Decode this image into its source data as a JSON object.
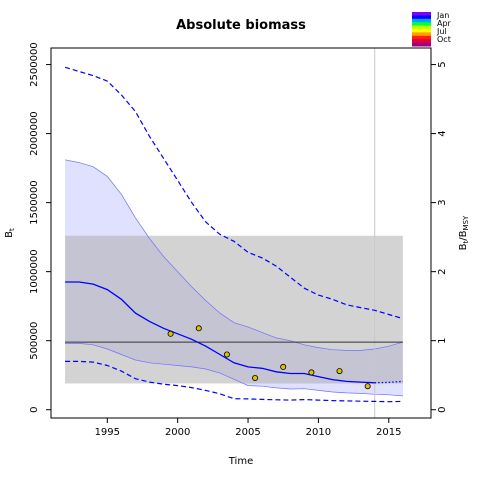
{
  "chart_data": {
    "type": "line",
    "title": "Absolute biomass",
    "xlabel": "Time",
    "ylabel": "B_t",
    "ylabel_right": "B_t/B_MSY",
    "xlim": [
      1991,
      2018
    ],
    "ylim": [
      -60000,
      2620000
    ],
    "ylim_right": [
      -0.12,
      5.24
    ],
    "x_ticks": [
      "1995",
      "2000",
      "2005",
      "2010",
      "2015"
    ],
    "y_ticks": [
      "0",
      "500000",
      "1000000",
      "1500000",
      "2000000",
      "2500000"
    ],
    "y_ticks_right": [
      "0",
      "1",
      "2",
      "3",
      "4",
      "5"
    ],
    "bmsy_band": {
      "x": [
        1992,
        2016
      ],
      "y": [
        190000,
        1260000
      ]
    },
    "bmsy_line": 490000,
    "current_year_line": 2014,
    "legend": {
      "labels": [
        "Jan",
        "Apr",
        "Jul",
        "Oct"
      ],
      "colors": [
        "#8000ff",
        "#0000ff",
        "#00a0ff",
        "#00ff40",
        "#c0ff00",
        "#ffff00",
        "#ffa000",
        "#ff2000",
        "#e00040",
        "#a00080"
      ]
    },
    "series": [
      {
        "role": "estimate",
        "color": "#0000ff",
        "x": [
          1992,
          1993,
          1994,
          1995,
          1996,
          1997,
          1998,
          1999,
          2000,
          2001,
          2002,
          2003,
          2004,
          2005,
          2006,
          2007,
          2008,
          2009,
          2010,
          2011,
          2012,
          2013,
          2014
        ],
        "values": [
          925000,
          925000,
          910000,
          870000,
          800000,
          700000,
          640000,
          590000,
          550000,
          510000,
          460000,
          400000,
          340000,
          310000,
          300000,
          275000,
          262000,
          262000,
          240000,
          218000,
          205000,
          200000,
          195000
        ]
      },
      {
        "role": "prediction",
        "color": "#0000ff",
        "x": [
          2014,
          2015,
          2016
        ],
        "values": [
          195000,
          198000,
          205000
        ]
      },
      {
        "role": "ci_upper",
        "color": "#0000ff",
        "x": [
          1992,
          1993,
          1994,
          1995,
          1996,
          1997,
          1998,
          1999,
          2000,
          2001,
          2002,
          2003,
          2004,
          2005,
          2006,
          2007,
          2008,
          2009,
          2010,
          2011,
          2012,
          2013,
          2014,
          2015,
          2016
        ],
        "values": [
          2480000,
          2450000,
          2420000,
          2380000,
          2280000,
          2160000,
          1980000,
          1820000,
          1660000,
          1500000,
          1360000,
          1270000,
          1220000,
          1140000,
          1100000,
          1040000,
          960000,
          880000,
          830000,
          800000,
          760000,
          740000,
          720000,
          690000,
          660000
        ]
      },
      {
        "role": "ci_lower",
        "color": "#0000ff",
        "x": [
          1992,
          1993,
          1994,
          1995,
          1996,
          1997,
          1998,
          1999,
          2000,
          2001,
          2002,
          2003,
          2004,
          2005,
          2006,
          2007,
          2008,
          2009,
          2010,
          2011,
          2012,
          2013,
          2014,
          2015,
          2016
        ],
        "values": [
          350000,
          350000,
          345000,
          320000,
          280000,
          225000,
          200000,
          185000,
          175000,
          160000,
          140000,
          115000,
          80000,
          78000,
          75000,
          72000,
          70000,
          73000,
          70000,
          66000,
          64000,
          62000,
          60000,
          58000,
          60000
        ]
      },
      {
        "role": "bmsy_ci_band_upper",
        "color": "#7070ff",
        "x": [
          1992,
          1993,
          1994,
          1995,
          1996,
          1997,
          1998,
          1999,
          2000,
          2001,
          2002,
          2003,
          2004,
          2005,
          2006,
          2007,
          2008,
          2009,
          2010,
          2011,
          2012,
          2013,
          2014,
          2015,
          2016
        ],
        "values": [
          1810000,
          1790000,
          1760000,
          1690000,
          1560000,
          1390000,
          1240000,
          1110000,
          1000000,
          890000,
          790000,
          700000,
          630000,
          600000,
          560000,
          520000,
          500000,
          470000,
          450000,
          435000,
          430000,
          430000,
          440000,
          460000,
          490000
        ]
      },
      {
        "role": "bmsy_ci_band_lower",
        "color": "#7070ff",
        "x": [
          1992,
          1993,
          1994,
          1995,
          1996,
          1997,
          1998,
          1999,
          2000,
          2001,
          2002,
          2003,
          2004,
          2005,
          2006,
          2007,
          2008,
          2009,
          2010,
          2011,
          2012,
          2013,
          2014,
          2015,
          2016
        ],
        "values": [
          480000,
          480000,
          470000,
          440000,
          400000,
          360000,
          340000,
          330000,
          320000,
          310000,
          295000,
          265000,
          220000,
          175000,
          170000,
          158000,
          150000,
          152000,
          140000,
          128000,
          122000,
          118000,
          112000,
          108000,
          100000
        ]
      }
    ],
    "points": {
      "role": "observations",
      "x": [
        1999.5,
        2001.5,
        2003.5,
        2005.5,
        2007.5,
        2009.5,
        2011.5,
        2013.5
      ],
      "values": [
        550000,
        590000,
        400000,
        230000,
        310000,
        270000,
        280000,
        170000
      ]
    }
  }
}
